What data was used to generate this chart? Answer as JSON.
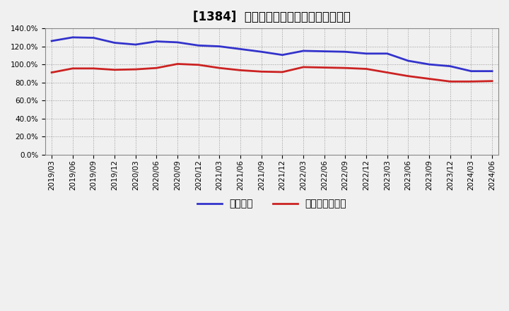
{
  "title": "[1384]  固定比率、固定長期適合率の推移",
  "blue_label": "固定比率",
  "red_label": "固定長期適合率",
  "x_labels": [
    "2019/03",
    "2019/06",
    "2019/09",
    "2019/12",
    "2020/03",
    "2020/06",
    "2020/09",
    "2020/12",
    "2021/03",
    "2021/06",
    "2021/09",
    "2021/12",
    "2022/03",
    "2022/06",
    "2022/09",
    "2022/12",
    "2023/03",
    "2023/06",
    "2023/09",
    "2023/12",
    "2024/03",
    "2024/06"
  ],
  "blue_values": [
    126.0,
    130.0,
    129.5,
    124.0,
    122.0,
    125.5,
    124.5,
    121.0,
    120.0,
    117.0,
    114.0,
    110.5,
    115.0,
    114.5,
    114.0,
    112.0,
    112.0,
    104.0,
    100.0,
    98.0,
    92.5,
    92.5
  ],
  "red_values": [
    91.0,
    95.5,
    95.5,
    94.0,
    94.5,
    96.0,
    100.5,
    99.5,
    96.0,
    93.5,
    92.0,
    91.5,
    97.0,
    96.5,
    96.0,
    95.0,
    91.0,
    87.0,
    84.0,
    81.0,
    81.0,
    81.5
  ],
  "blue_color": "#3333cc",
  "red_color": "#cc2222",
  "bg_color": "#f0f0f0",
  "plot_bg_color": "#f0f0f0",
  "grid_color": "#999999",
  "ylim": [
    0,
    140
  ],
  "ytick_values": [
    0,
    20,
    40,
    60,
    80,
    100,
    120,
    140
  ],
  "title_fontsize": 12,
  "legend_fontsize": 10,
  "axis_fontsize": 7.5
}
